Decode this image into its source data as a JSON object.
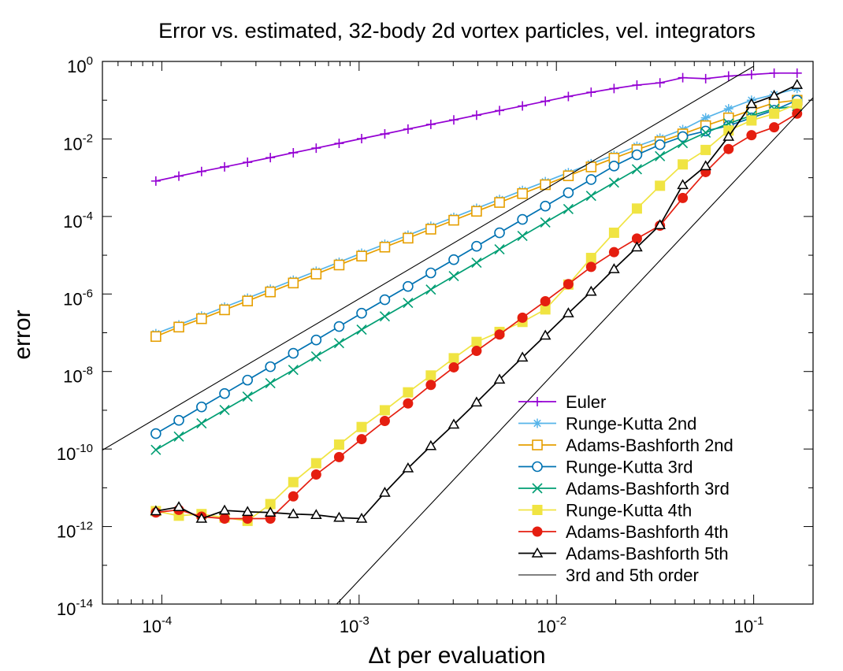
{
  "chart_data": {
    "type": "line",
    "title": "Error vs. estimated, 32-body 2d vortex particles, vel. integrators",
    "xlabel": "Δt per evaluation",
    "ylabel": "error",
    "x_scale": "log",
    "y_scale": "log",
    "xlim": [
      5e-05,
      0.2
    ],
    "ylim": [
      1e-14,
      1
    ],
    "x_tick_labels": [
      {
        "value": 0.0001,
        "base": "10",
        "exp": "-4"
      },
      {
        "value": 0.001,
        "base": "10",
        "exp": "-3"
      },
      {
        "value": 0.01,
        "base": "10",
        "exp": "-2"
      },
      {
        "value": 0.1,
        "base": "10",
        "exp": "-1"
      }
    ],
    "y_tick_labels": [
      {
        "value": 1,
        "base": "10",
        "exp": "0"
      },
      {
        "value": 0.01,
        "base": "10",
        "exp": "-2"
      },
      {
        "value": 0.0001,
        "base": "10",
        "exp": "-4"
      },
      {
        "value": 1e-06,
        "base": "10",
        "exp": "-6"
      },
      {
        "value": 1e-08,
        "base": "10",
        "exp": "-8"
      },
      {
        "value": 1e-10,
        "base": "10",
        "exp": "-10"
      },
      {
        "value": 1e-12,
        "base": "10",
        "exp": "-12"
      },
      {
        "value": 1e-14,
        "base": "10",
        "exp": "-14"
      }
    ],
    "grid": false,
    "legend_position": "bottom-right",
    "x": [
      9.33e-05,
      0.000122,
      0.000159,
      0.000208,
      0.000272,
      0.000355,
      0.000464,
      0.000606,
      0.000792,
      0.00103,
      0.00135,
      0.00177,
      0.00231,
      0.00302,
      0.00394,
      0.00515,
      0.00673,
      0.00879,
      0.0115,
      0.015,
      0.0196,
      0.0256,
      0.0335,
      0.0437,
      0.0571,
      0.0746,
      0.0975,
      0.127,
      0.166
    ],
    "series": [
      {
        "name": "Euler",
        "color": "#9400d3",
        "marker": "plus",
        "values": [
          0.00082,
          0.0011,
          0.00145,
          0.0019,
          0.0025,
          0.0033,
          0.0044,
          0.0058,
          0.0077,
          0.0102,
          0.0135,
          0.018,
          0.0238,
          0.031,
          0.041,
          0.054,
          0.071,
          0.094,
          0.125,
          0.16,
          0.2,
          0.245,
          0.28,
          0.38,
          0.36,
          0.42,
          0.46,
          0.5,
          0.5
        ]
      },
      {
        "name": "Runge-Kutta 2nd",
        "color": "#56b4e9",
        "marker": "asterisk",
        "values": [
          9.5e-08,
          1.6e-07,
          2.7e-07,
          4.6e-07,
          7.8e-07,
          1.33e-06,
          2.27e-06,
          3.87e-06,
          6.6e-06,
          1.13e-05,
          1.92e-05,
          3.28e-05,
          5.6e-05,
          9.5e-05,
          0.000162,
          0.000275,
          0.00047,
          0.00079,
          0.00135,
          0.0023,
          0.0038,
          0.0065,
          0.0105,
          0.0175,
          0.035,
          0.06,
          0.1,
          0.14,
          0.2
        ]
      },
      {
        "name": "Adams-Bashforth 2nd",
        "color": "#e69f00",
        "marker": "square-open",
        "values": [
          8e-08,
          1.4e-07,
          2.3e-07,
          3.9e-07,
          6.6e-07,
          1.13e-06,
          1.92e-06,
          3.27e-06,
          5.6e-06,
          9.5e-06,
          1.62e-05,
          2.76e-05,
          4.7e-05,
          8e-05,
          0.000136,
          0.00023,
          0.00039,
          0.00066,
          0.00112,
          0.0019,
          0.0032,
          0.0053,
          0.0085,
          0.0135,
          0.022,
          0.035,
          0.055,
          0.085,
          0.1
        ]
      },
      {
        "name": "Runge-Kutta 3rd",
        "color": "#0072b2",
        "marker": "circle-open",
        "values": [
          2.5e-10,
          5.5e-10,
          1.22e-09,
          2.7e-09,
          6e-09,
          1.33e-08,
          2.95e-08,
          6.5e-08,
          1.45e-07,
          3.2e-07,
          7.1e-07,
          1.57e-06,
          3.5e-06,
          7.7e-06,
          1.7e-05,
          3.8e-05,
          8.4e-05,
          0.000185,
          0.00041,
          0.0009,
          0.002,
          0.0039,
          0.0071,
          0.0115,
          0.016,
          0.022,
          0.035,
          0.055,
          0.1
        ]
      },
      {
        "name": "Adams-Bashforth 3rd",
        "color": "#009e73",
        "marker": "cross",
        "values": [
          9.5e-11,
          2.1e-10,
          4.6e-10,
          1.02e-09,
          2.25e-09,
          5e-09,
          1.1e-08,
          2.45e-08,
          5.4e-08,
          1.2e-07,
          2.65e-07,
          5.9e-07,
          1.3e-06,
          2.9e-06,
          6.4e-06,
          1.42e-05,
          3.15e-05,
          7e-05,
          0.000155,
          0.00034,
          0.00075,
          0.00165,
          0.0036,
          0.0078,
          0.0145,
          0.025,
          0.04,
          0.06,
          0.07
        ]
      },
      {
        "name": "Runge-Kutta 4th",
        "color": "#f0e442",
        "marker": "square-filled",
        "values": [
          2.5e-12,
          1.9e-12,
          2.1e-12,
          1.7e-12,
          1.4e-12,
          3.8e-12,
          1.4e-11,
          4.3e-11,
          1.3e-10,
          3.7e-10,
          1e-09,
          2.9e-09,
          7.9e-09,
          2.2e-08,
          5.8e-08,
          1.05e-07,
          1.9e-07,
          4e-07,
          1.75e-06,
          8.5e-06,
          3.8e-05,
          0.00016,
          0.00062,
          0.0022,
          0.0052,
          0.0165,
          0.03,
          0.045,
          0.08
        ]
      },
      {
        "name": "Adams-Bashforth 4th",
        "color": "#e51e10",
        "marker": "circle-filled",
        "values": [
          2.3e-12,
          2.7e-12,
          1.8e-12,
          1.6e-12,
          1.6e-12,
          1.6e-12,
          6e-12,
          2.2e-11,
          6.2e-11,
          1.8e-10,
          5.3e-10,
          1.5e-09,
          4.5e-09,
          1.28e-08,
          3.4e-08,
          9e-08,
          2.45e-07,
          6.5e-07,
          1.8e-06,
          5e-06,
          1.2e-05,
          2.7e-05,
          5.8e-05,
          0.0003,
          0.0014,
          0.0055,
          0.0125,
          0.02,
          0.045
        ]
      },
      {
        "name": "Adams-Bashforth 5th",
        "color": "#000000",
        "marker": "triangle-open",
        "values": [
          2.5e-12,
          3.2e-12,
          1.6e-12,
          2.6e-12,
          2.4e-12,
          2.3e-12,
          2.1e-12,
          2e-12,
          1.7e-12,
          1.6e-12,
          7.5e-12,
          3.2e-11,
          1.2e-10,
          4.3e-10,
          1.6e-09,
          6.2e-09,
          2.3e-08,
          8.5e-08,
          3.2e-07,
          1.15e-06,
          4.4e-06,
          1.6e-05,
          6e-05,
          0.00065,
          0.002,
          0.0115,
          0.08,
          0.13,
          0.25
        ]
      },
      {
        "name": "3rd and 5th order",
        "color": "#000000",
        "marker": "none",
        "kind": "reference",
        "lines": [
          {
            "x": [
              5e-05,
              0.1
            ],
            "values": [
              9.4e-11,
              0.75
            ]
          },
          {
            "x": [
              0.00077,
              0.2
            ],
            "values": [
              1e-14,
              0.116
            ]
          }
        ]
      }
    ]
  }
}
